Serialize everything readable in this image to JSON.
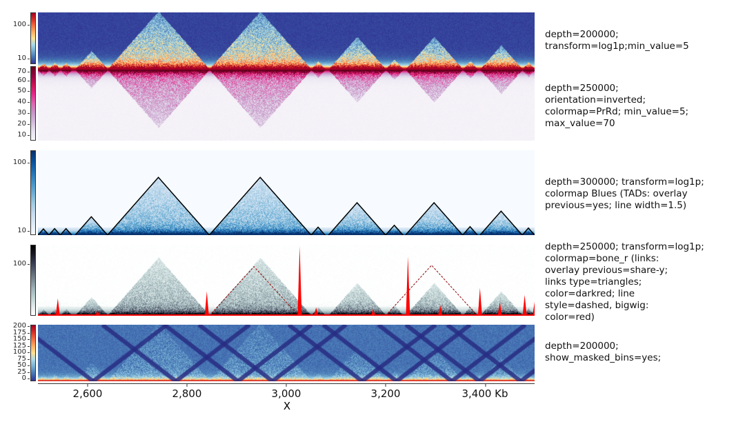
{
  "chart_data": {
    "type": "heatmap",
    "xlabel": "X",
    "xlim": [
      2500,
      3500
    ],
    "xticks": [
      2600,
      2800,
      3000,
      3200,
      3400
    ],
    "xtick_labels": [
      "2,600",
      "2,800",
      "3,000",
      "3,200",
      "3,400 Kb"
    ],
    "tads": [
      [
        2500,
        2522
      ],
      [
        2522,
        2545
      ],
      [
        2545,
        2568
      ],
      [
        2575,
        2640
      ],
      [
        2640,
        2845
      ],
      [
        2845,
        3050
      ],
      [
        3050,
        3078
      ],
      [
        3085,
        3200
      ],
      [
        3200,
        3235
      ],
      [
        3240,
        3355
      ],
      [
        3355,
        3385
      ],
      [
        3390,
        3475
      ],
      [
        3475,
        3500
      ]
    ],
    "links": [
      [
        2845,
        3025
      ],
      [
        3200,
        3385
      ]
    ],
    "bigwig_peaks": [
      [
        2540,
        0.25
      ],
      [
        2620,
        0.08
      ],
      [
        2840,
        0.35
      ],
      [
        3027,
        1.0
      ],
      [
        3060,
        0.12
      ],
      [
        3175,
        0.1
      ],
      [
        3245,
        0.85
      ],
      [
        3310,
        0.15
      ],
      [
        3390,
        0.4
      ],
      [
        3430,
        0.2
      ],
      [
        3480,
        0.3
      ],
      [
        3500,
        0.2
      ]
    ],
    "tracks": [
      {
        "label": "depth=200000;\ntransform=log1p;min_value=5",
        "colormap": "RdYlBu_r",
        "orientation": "normal",
        "scale": "log",
        "colorbar_ticks": [
          "100",
          "10"
        ]
      },
      {
        "label": "depth=250000;\norientation=inverted;\ncolormap=PrRd; min_value=5;\nmax_value=70",
        "colormap": "PrRd",
        "orientation": "inverted",
        "scale": "linear",
        "colorbar_ticks": [
          "70",
          "60",
          "50",
          "40",
          "30",
          "20",
          "10"
        ]
      },
      {
        "label": "depth=300000; transform=log1p;\ncolormap Blues (TADs: overlay\nprevious=yes; line width=1.5)",
        "colormap": "Blues",
        "orientation": "normal",
        "scale": "log",
        "colorbar_ticks": [
          "100",
          "10"
        ]
      },
      {
        "label": "depth=250000; transform=log1p;\ncolormap=bone_r (links:\noverlay previous=share-y;\nlinks type=triangles;\ncolor=darkred; line\nstyle=dashed, bigwig:\ncolor=red)",
        "colormap": "bone_r",
        "orientation": "normal",
        "scale": "log",
        "colorbar_ticks": [
          "100"
        ]
      },
      {
        "label": "depth=200000;\nshow_masked_bins=yes;",
        "colormap": "RdYlBu_r",
        "orientation": "normal",
        "scale": "linear",
        "colorbar_ticks": [
          "200",
          "175",
          "150",
          "125",
          "100",
          "75",
          "50",
          "25",
          "0"
        ]
      }
    ],
    "colors": {
      "tad_line": "#000000",
      "links": "#8b0000",
      "bigwig": "#ff0000"
    }
  }
}
